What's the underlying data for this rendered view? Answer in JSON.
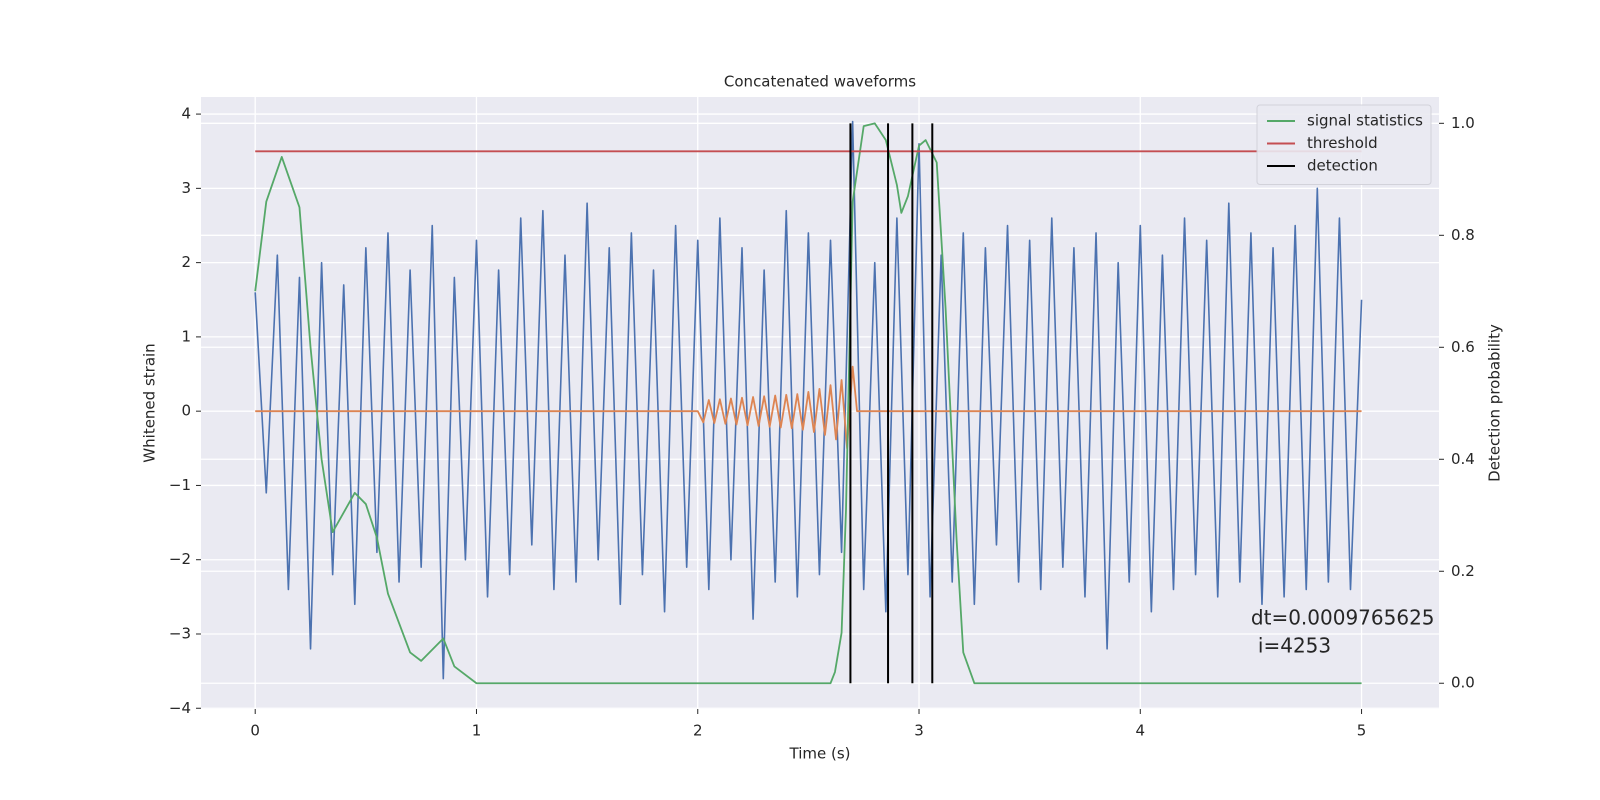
{
  "chart_data": {
    "type": "line",
    "title": "Concatenated waveforms",
    "xlabel": "Time (s)",
    "ylabel": "Whitened strain",
    "y2label": "Detection probability",
    "xlim": [
      -0.245,
      5.35
    ],
    "ylim": [
      -4.01,
      4.23
    ],
    "y2lim": [
      -0.046,
      1.047
    ],
    "xticks": [
      0,
      1,
      2,
      3,
      4,
      5
    ],
    "yticks": [
      {
        "value": -4,
        "label": "−4"
      },
      {
        "value": -3,
        "label": "−3"
      },
      {
        "value": -2,
        "label": "−2"
      },
      {
        "value": -1,
        "label": "−1"
      },
      0,
      1,
      2,
      3,
      4
    ],
    "y2ticks": [
      {
        "value": 0,
        "label": "0.0"
      },
      0.2,
      0.4,
      0.6,
      0.8,
      {
        "value": 1,
        "label": "1.0"
      }
    ],
    "grid": true,
    "legend": "upper right",
    "series": [
      {
        "color": "#4c72b0",
        "x": [
          0,
          0.05,
          0.1,
          0.15,
          0.2,
          0.25,
          0.3,
          0.35,
          0.4,
          0.45,
          0.5,
          0.55,
          0.6,
          0.65,
          0.7,
          0.75,
          0.8,
          0.85,
          0.9,
          0.95,
          1,
          1.05,
          1.1,
          1.15,
          1.2,
          1.25,
          1.3,
          1.35,
          1.4,
          1.45,
          1.5,
          1.55,
          1.6,
          1.65,
          1.7,
          1.75,
          1.8,
          1.85,
          1.9,
          1.95,
          2,
          2.05,
          2.1,
          2.15,
          2.2,
          2.25,
          2.3,
          2.35,
          2.4,
          2.45,
          2.5,
          2.55,
          2.6,
          2.65,
          2.7,
          2.75,
          2.8,
          2.85,
          2.9,
          2.95,
          3,
          3.05,
          3.1,
          3.15,
          3.2,
          3.25,
          3.3,
          3.35,
          3.4,
          3.45,
          3.5,
          3.55,
          3.6,
          3.65,
          3.7,
          3.75,
          3.8,
          3.85,
          3.9,
          3.95,
          4,
          4.05,
          4.1,
          4.15,
          4.2,
          4.25,
          4.3,
          4.35,
          4.4,
          4.45,
          4.5,
          4.55,
          4.6,
          4.65,
          4.7,
          4.75,
          4.8,
          4.85,
          4.9,
          4.95,
          5
        ],
        "values": [
          1.6,
          -1.1,
          2.1,
          -2.4,
          1.8,
          -3.2,
          2.0,
          -2.2,
          1.7,
          -2.6,
          2.2,
          -1.9,
          2.4,
          -2.3,
          1.9,
          -2.1,
          2.5,
          -3.6,
          1.8,
          -2.0,
          2.3,
          -2.5,
          1.9,
          -2.2,
          2.6,
          -1.8,
          2.7,
          -2.4,
          2.1,
          -2.3,
          2.8,
          -2.0,
          2.2,
          -2.6,
          2.4,
          -2.2,
          1.9,
          -2.7,
          2.5,
          -2.1,
          2.3,
          -2.4,
          2.6,
          -2.0,
          2.2,
          -2.8,
          1.9,
          -2.3,
          2.7,
          -2.5,
          2.4,
          -2.2,
          2.3,
          -1.9,
          3.9,
          -2.4,
          2.0,
          -2.7,
          2.6,
          -2.2,
          3.6,
          -2.5,
          2.1,
          -2.3,
          2.4,
          -2.6,
          2.2,
          -1.8,
          2.5,
          -2.3,
          2.3,
          -2.4,
          2.6,
          -2.1,
          2.2,
          -2.5,
          2.4,
          -3.2,
          2.0,
          -2.3,
          2.5,
          -2.7,
          2.1,
          -2.4,
          2.6,
          -2.2,
          2.3,
          -2.5,
          2.8,
          -2.3,
          2.4,
          -2.6,
          2.2,
          -2.5,
          2.5,
          -2.4,
          3.0,
          -2.3,
          2.6,
          -2.4,
          1.5
        ]
      },
      {
        "color": "#dd8452",
        "x": [
          0,
          2,
          2.025,
          2.05,
          2.075,
          2.1,
          2.125,
          2.15,
          2.175,
          2.2,
          2.225,
          2.25,
          2.275,
          2.3,
          2.325,
          2.35,
          2.375,
          2.4,
          2.425,
          2.45,
          2.475,
          2.5,
          2.525,
          2.55,
          2.575,
          2.6,
          2.625,
          2.65,
          2.675,
          2.7,
          2.72,
          5
        ],
        "values": [
          0,
          0,
          -0.15,
          0.15,
          -0.16,
          0.16,
          -0.17,
          0.17,
          -0.18,
          0.18,
          -0.19,
          0.19,
          -0.2,
          0.2,
          -0.21,
          0.21,
          -0.22,
          0.22,
          -0.23,
          0.23,
          -0.25,
          0.26,
          -0.28,
          0.3,
          -0.32,
          0.35,
          -0.38,
          0.42,
          -0.5,
          0.6,
          0,
          0
        ]
      },
      {
        "name": "signal statistics",
        "color": "#55a868",
        "axis": "y2",
        "x": [
          0,
          0.05,
          0.12,
          0.2,
          0.25,
          0.3,
          0.35,
          0.45,
          0.5,
          0.55,
          0.6,
          0.7,
          0.75,
          0.85,
          0.9,
          1,
          2.6,
          2.62,
          2.65,
          2.67,
          2.7,
          2.75,
          2.8,
          2.85,
          2.9,
          2.92,
          2.95,
          3,
          3.03,
          3.08,
          3.12,
          3.17,
          3.2,
          3.25,
          5
        ],
        "values": [
          0.7,
          0.86,
          0.94,
          0.85,
          0.6,
          0.4,
          0.27,
          0.34,
          0.32,
          0.26,
          0.16,
          0.055,
          0.04,
          0.08,
          0.03,
          0,
          0,
          0.02,
          0.09,
          0.31,
          0.86,
          0.995,
          1,
          0.97,
          0.89,
          0.84,
          0.87,
          0.96,
          0.97,
          0.93,
          0.67,
          0.255,
          0.055,
          0,
          0
        ]
      },
      {
        "name": "threshold",
        "color": "#c44e52",
        "axis": "y2",
        "x": [
          0,
          5
        ],
        "values": [
          0.95,
          0.95
        ]
      }
    ],
    "vlines": {
      "name": "detection",
      "color": "#000000",
      "x": [
        2.69,
        2.86,
        2.97,
        3.06
      ],
      "y2range": [
        0,
        1
      ]
    },
    "annotation": {
      "lines": [
        "dt=0.0009765625",
        "i=4253"
      ],
      "x": 4.5,
      "y": -2.93
    }
  }
}
